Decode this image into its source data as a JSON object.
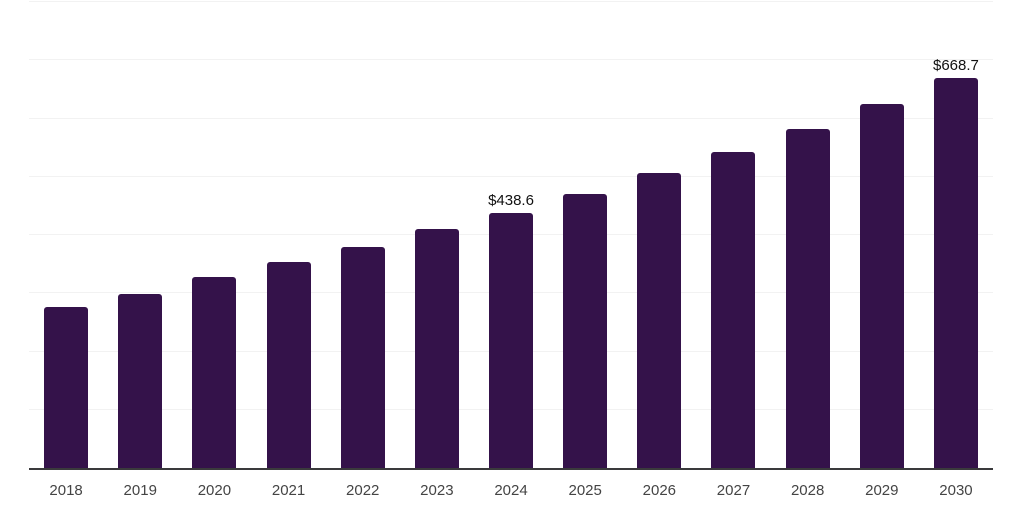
{
  "chart_data": {
    "type": "bar",
    "categories": [
      "2018",
      "2019",
      "2020",
      "2021",
      "2022",
      "2023",
      "2024",
      "2025",
      "2026",
      "2027",
      "2028",
      "2029",
      "2030"
    ],
    "values": [
      275.6,
      298.9,
      328.7,
      353.7,
      380.1,
      409.8,
      438.6,
      471.0,
      507.0,
      542.3,
      581.3,
      624.1,
      668.7
    ],
    "value_labels": [
      "",
      "",
      "",
      "",
      "",
      "",
      "$438.6",
      "",
      "",
      "",
      "",
      "",
      "$668.7"
    ],
    "ylim": [
      0,
      800
    ],
    "gridline_step": 100,
    "grid": true,
    "legend_position": "none",
    "colors": {
      "bar": "#34124a",
      "gridline": "#f2f2f2",
      "axis_line": "#3a3a3c",
      "value_label": "#111111",
      "tick_label": "#444444",
      "background": "#ffffff"
    }
  }
}
